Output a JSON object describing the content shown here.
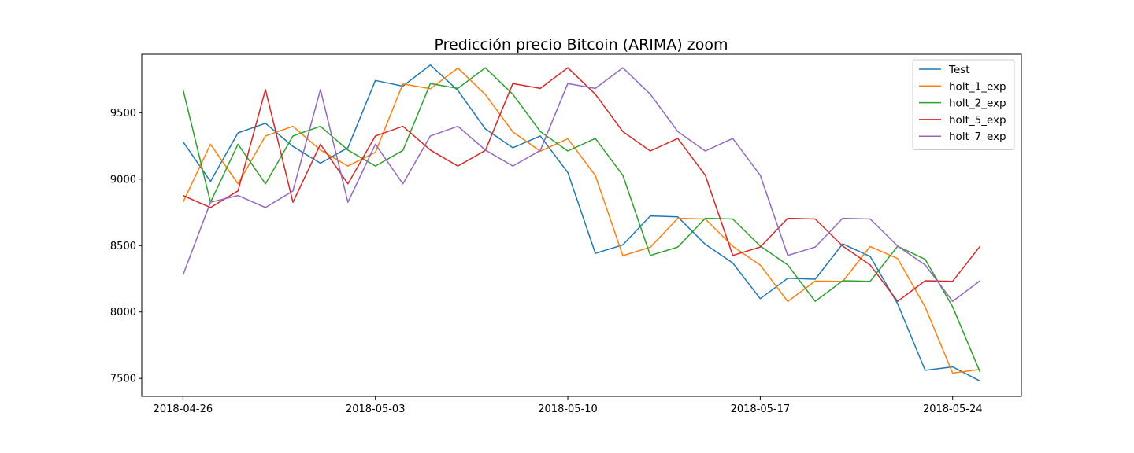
{
  "chart_data": {
    "type": "line",
    "title": "Predicción precio Bitcoin (ARIMA) zoom",
    "xlabel": "",
    "ylabel": "",
    "x": [
      "2018-04-26",
      "2018-04-27",
      "2018-04-28",
      "2018-04-29",
      "2018-04-30",
      "2018-05-01",
      "2018-05-02",
      "2018-05-03",
      "2018-05-04",
      "2018-05-05",
      "2018-05-06",
      "2018-05-07",
      "2018-05-08",
      "2018-05-09",
      "2018-05-10",
      "2018-05-11",
      "2018-05-12",
      "2018-05-13",
      "2018-05-14",
      "2018-05-15",
      "2018-05-16",
      "2018-05-17",
      "2018-05-18",
      "2018-05-19",
      "2018-05-20",
      "2018-05-21",
      "2018-05-22",
      "2018-05-23",
      "2018-05-24",
      "2018-05-25"
    ],
    "xlim": [
      "2018-04-24.5",
      "2018-05-26.5"
    ],
    "ylim": [
      7365,
      9940
    ],
    "x_ticks": [
      {
        "date": "2018-04-26",
        "label": "2018-04-26"
      },
      {
        "date": "2018-05-03",
        "label": "2018-05-03"
      },
      {
        "date": "2018-05-10",
        "label": "2018-05-10"
      },
      {
        "date": "2018-05-17",
        "label": "2018-05-17"
      },
      {
        "date": "2018-05-24",
        "label": "2018-05-24"
      }
    ],
    "y_ticks": [
      {
        "value": 7500,
        "label": "7500"
      },
      {
        "value": 8000,
        "label": "8000"
      },
      {
        "value": 8500,
        "label": "8500"
      },
      {
        "value": 9000,
        "label": "9000"
      },
      {
        "value": 9500,
        "label": "9500"
      }
    ],
    "grid": false,
    "legend_position": "top-right",
    "series": [
      {
        "name": "Test",
        "color": "#1f77b4",
        "values": [
          9282,
          8983,
          9348,
          9420,
          9246,
          9120,
          9237,
          9743,
          9700,
          9859,
          9668,
          9378,
          9236,
          9325,
          9050,
          8442,
          8505,
          8723,
          8716,
          8510,
          8369,
          8100,
          8254,
          8247,
          8513,
          8418,
          8062,
          7561,
          7587,
          7480
        ]
      },
      {
        "name": "holt_1_exp",
        "color": "#ff7f0e",
        "values": [
          8826,
          9263,
          8965,
          9325,
          9398,
          9219,
          9099,
          9202,
          9717,
          9681,
          9836,
          9637,
          9356,
          9210,
          9304,
          9027,
          8424,
          8488,
          8705,
          8700,
          8495,
          8353,
          8079,
          8233,
          8230,
          8493,
          8402,
          8038,
          7540,
          7568
        ]
      },
      {
        "name": "holt_2_exp",
        "color": "#2ca02c",
        "values": [
          9675,
          8826,
          9263,
          8965,
          9325,
          9398,
          9219,
          9099,
          9216,
          9720,
          9683,
          9838,
          9639,
          9358,
          9212,
          9306,
          9029,
          8426,
          8489,
          8705,
          8700,
          8496,
          8354,
          8080,
          8235,
          8231,
          8495,
          8397,
          8039,
          7547
        ]
      },
      {
        "name": "holt_5_exp",
        "color": "#d62728",
        "values": [
          8877,
          8786,
          8911,
          9675,
          8826,
          9263,
          8965,
          9325,
          9398,
          9219,
          9099,
          9216,
          9720,
          9683,
          9838,
          9639,
          9358,
          9212,
          9306,
          9029,
          8426,
          8489,
          8705,
          8700,
          8496,
          8354,
          8080,
          8235,
          8231,
          8495
        ]
      },
      {
        "name": "holt_7_exp",
        "color": "#9467bd",
        "values": [
          8279,
          8826,
          8877,
          8786,
          8911,
          9675,
          8826,
          9263,
          8965,
          9325,
          9398,
          9219,
          9099,
          9216,
          9720,
          9683,
          9838,
          9639,
          9358,
          9212,
          9306,
          9029,
          8426,
          8489,
          8705,
          8700,
          8496,
          8354,
          8080,
          8235
        ]
      }
    ]
  }
}
